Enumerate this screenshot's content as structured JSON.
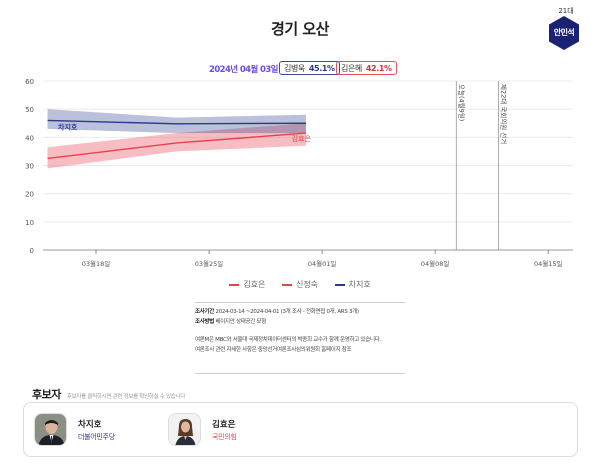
{
  "header": {
    "title": "경기 오산",
    "session_label": "21대",
    "incumbent_badge": "안민석",
    "incumbent_color": "#1b2175"
  },
  "summary": {
    "date": "2024년 04월 03일",
    "badges": [
      {
        "name": "김병욱",
        "percent": "45.1%",
        "color": "#2b3a8f"
      },
      {
        "name": "김은혜",
        "percent": "42.1%",
        "color": "#e0303d"
      }
    ]
  },
  "chart_data": {
    "type": "line",
    "title": "경기 오산",
    "xlabel": "",
    "ylabel": "",
    "ylim": [
      0,
      60
    ],
    "yticks": [
      0,
      10,
      20,
      30,
      40,
      50,
      60
    ],
    "xticks": [
      "03월18일",
      "03월25일",
      "04월01일",
      "04월08일",
      "04월15일"
    ],
    "grid": true,
    "legend_position": "bottom",
    "x": [
      "2024-03-15",
      "2024-03-23",
      "2024-03-31"
    ],
    "series": [
      {
        "name": "김효은",
        "color": "#e8414f",
        "values": [
          32.5,
          38.0,
          41.5
        ],
        "lower": [
          29.0,
          35.0,
          37.0
        ],
        "upper": [
          36.5,
          41.5,
          45.0
        ],
        "label": "김효은"
      },
      {
        "name": "신정숙",
        "color": "#e8414f",
        "values": [],
        "lower": [],
        "upper": []
      },
      {
        "name": "차지호",
        "color": "#2b3a8f",
        "values": [
          46.0,
          44.8,
          45.0
        ],
        "lower": [
          43.0,
          41.5,
          41.5
        ],
        "upper": [
          50.0,
          47.0,
          48.0
        ],
        "label": "차지호"
      }
    ],
    "annotations": [
      {
        "date": "2024-04-09",
        "text": "오늘(4월9일)"
      },
      {
        "date": "2024-04-10",
        "text": "제22대 국회의원 선거"
      }
    ]
  },
  "legend": {
    "items": [
      {
        "label": "김효은",
        "color": "#e8414f"
      },
      {
        "label": "신정숙",
        "color": "#e8414f"
      },
      {
        "label": "차지호",
        "color": "#2b3a8f"
      }
    ]
  },
  "notes": {
    "period_label": "조사기간",
    "period_value": "2024-03-14 ~2024-04-01 (3개 조사 - 전화면접 0개, ARS 3개)",
    "method_label": "조사방법",
    "method_value": "베이지안 상태공간 모형",
    "line1": "여론M은 MBC와 서울대 국제정치데이터센터의 박종희 교수가 함께 운영하고 있습니다.",
    "line2": "여론조사 관련 자세한 사항은 중앙선거여론조사심의위원회 홈페이지 참조"
  },
  "candidates": {
    "title": "후보자",
    "subtitle": "후보자를 클릭하시면 관련 정보를 확인하실 수 있습니다",
    "list": [
      {
        "name": "차지호",
        "party": "더불어민주당",
        "party_color": "#2b3a8f"
      },
      {
        "name": "김효은",
        "party": "국민의힘",
        "party_color": "#e8414f"
      }
    ]
  }
}
